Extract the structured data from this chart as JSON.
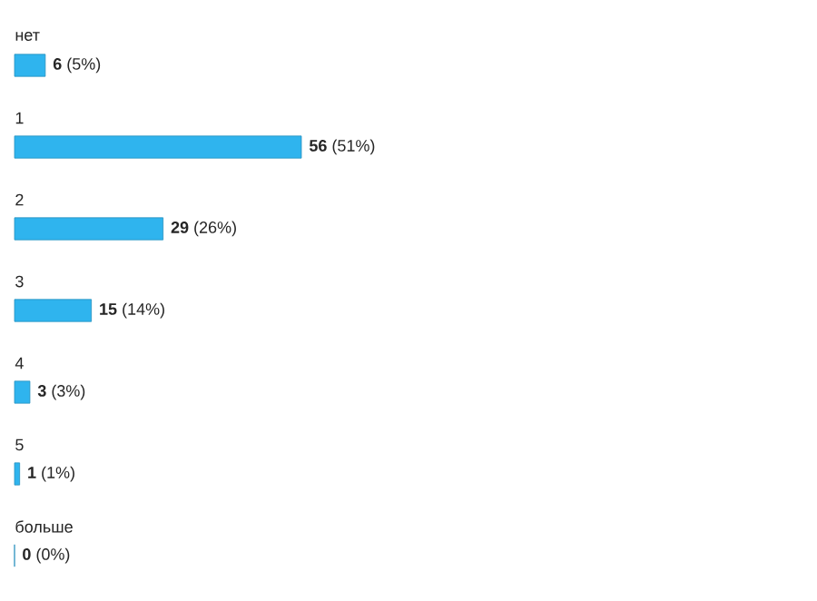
{
  "chart_data": {
    "type": "bar",
    "orientation": "horizontal",
    "categories": [
      "нет",
      "1",
      "2",
      "3",
      "4",
      "5",
      "больше"
    ],
    "values": [
      6,
      56,
      29,
      15,
      3,
      1,
      0
    ],
    "color": "#2fb4ee",
    "value_labels": [
      "**6** (5%)",
      "**56** (51%)",
      "**29** (26%)",
      "**15** (14%)",
      "**3** (3%)",
      "**1** (1%)",
      "**0** (0%)"
    ]
  }
}
